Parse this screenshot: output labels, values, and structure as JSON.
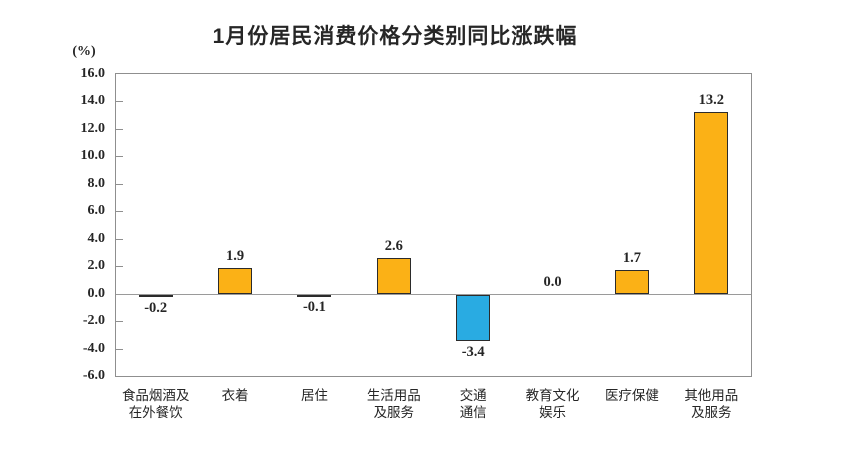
{
  "chart_data": {
    "type": "bar",
    "title": "1月份居民消费价格分类别同比涨跌幅",
    "unit_label": "(%)",
    "categories": [
      {
        "name": "食品烟酒及在外餐饮",
        "lines": [
          "食品烟酒及",
          "在外餐饮"
        ]
      },
      {
        "name": "衣着",
        "lines": [
          "衣着"
        ]
      },
      {
        "name": "居住",
        "lines": [
          "居住"
        ]
      },
      {
        "name": "生活用品及服务",
        "lines": [
          "生活用品",
          "及服务"
        ]
      },
      {
        "name": "交通通信",
        "lines": [
          "交通",
          "通信"
        ]
      },
      {
        "name": "教育文化娱乐",
        "lines": [
          "教育文化",
          "娱乐"
        ]
      },
      {
        "name": "医疗保健",
        "lines": [
          "医疗保健"
        ]
      },
      {
        "name": "其他用品及服务",
        "lines": [
          "其他用品",
          "及服务"
        ]
      }
    ],
    "values": [
      -0.2,
      1.9,
      -0.1,
      2.6,
      -3.4,
      0.0,
      1.7,
      13.2
    ],
    "value_labels": [
      "-0.2",
      "1.9",
      "-0.1",
      "2.6",
      "-3.4",
      "0.0",
      "1.7",
      "13.2"
    ],
    "ylim": [
      -6.0,
      16.0
    ],
    "ytick_step": 2.0,
    "ytick_labels": [
      "16.0",
      "14.0",
      "12.0",
      "10.0",
      "8.0",
      "6.0",
      "4.0",
      "2.0",
      "0.0",
      "-2.0",
      "-4.0",
      "-6.0"
    ],
    "grid": false,
    "legend": "none",
    "colors": {
      "positive_bar": "#FBB116",
      "negative_bar": "#29ABE2",
      "bar_border": "#2b2b2b",
      "axis_line": "#8f8f8f",
      "text": "#262626"
    }
  }
}
